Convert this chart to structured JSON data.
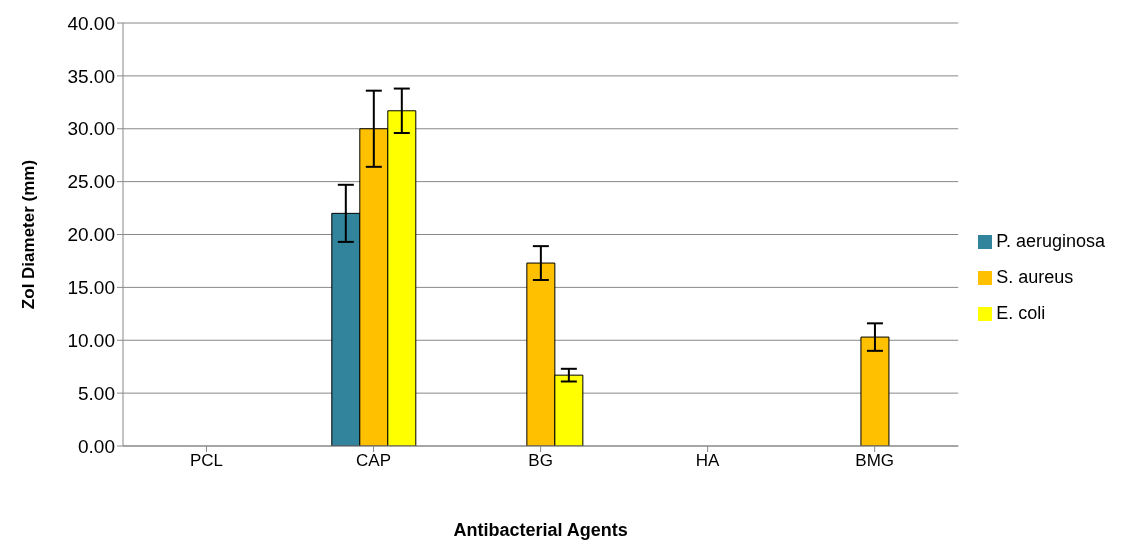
{
  "chart_data": {
    "type": "bar",
    "xlabel": "Antibacterial Agents",
    "ylabel": "ZoI Diameter (mm)",
    "categories": [
      "PCL",
      "CAP",
      "BG",
      "HA",
      "BMG"
    ],
    "series": [
      {
        "name": "P. aeruginosa",
        "color": "#31849b",
        "values": [
          null,
          22.0,
          null,
          null,
          null
        ],
        "errors": [
          null,
          2.7,
          null,
          null,
          null
        ]
      },
      {
        "name": "S. aureus",
        "color": "#ffc000",
        "values": [
          null,
          30.0,
          17.3,
          null,
          10.3
        ],
        "errors": [
          null,
          3.6,
          1.6,
          null,
          1.3
        ]
      },
      {
        "name": "E. coli",
        "color": "#ffff00",
        "values": [
          null,
          31.7,
          6.7,
          null,
          null
        ],
        "errors": [
          null,
          2.1,
          0.6,
          null,
          null
        ]
      }
    ],
    "ylim": [
      0,
      40
    ],
    "yticks": [
      {
        "value": 0,
        "label": "0.00"
      },
      {
        "value": 5,
        "label": "5.00"
      },
      {
        "value": 10,
        "label": "10.00"
      },
      {
        "value": 15,
        "label": "15.00"
      },
      {
        "value": 20,
        "label": "20.00"
      },
      {
        "value": 25,
        "label": "25.00"
      },
      {
        "value": 30,
        "label": "30.00"
      },
      {
        "value": 35,
        "label": "35.00"
      },
      {
        "value": 40,
        "label": "40.00"
      }
    ],
    "grid": "y",
    "legend": "right"
  }
}
